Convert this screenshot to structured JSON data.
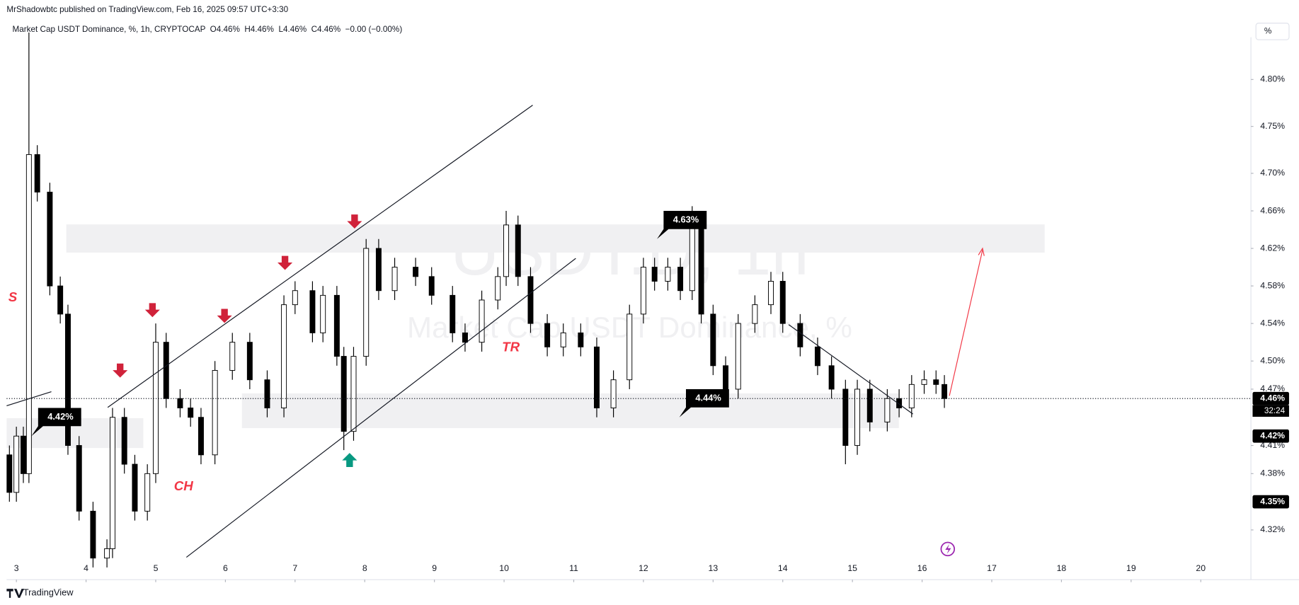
{
  "header": {
    "publisher": "MrShadowbtc published on TradingView.com, Feb 16, 2025 09:57 UTC+3:30",
    "symbol_line": "Market Cap USDT Dominance, %, 1h, CRYPTOCAP  O4.46%  H4.46%  L4.46%  C4.46%  −0.00 (−0.00%)"
  },
  "scale_button": "%",
  "footer": "TradingView",
  "chart_data": {
    "type": "candlestick",
    "watermark": [
      "USDT.D, 1h",
      "Market Cap USDT Dominance, %"
    ],
    "x": [
      2.9,
      3.0,
      3.1,
      3.18,
      3.3,
      3.48,
      3.63,
      3.74,
      3.9,
      4.1,
      4.3,
      4.38,
      4.55,
      4.7,
      4.88,
      5.0,
      5.15,
      5.35,
      5.5,
      5.65,
      5.85,
      6.1,
      6.35,
      6.6,
      6.84,
      7.0,
      7.25,
      7.4,
      7.6,
      7.7,
      7.84,
      8.02,
      8.2,
      8.43,
      8.73,
      8.96,
      9.26,
      9.44,
      9.68,
      9.91,
      10.03,
      10.2,
      10.38,
      10.62,
      10.85,
      11.1,
      11.33,
      11.57,
      11.8,
      12.0,
      12.16,
      12.35,
      12.53,
      12.7,
      12.83,
      13.0,
      13.18,
      13.36,
      13.6,
      13.83,
      14.0,
      14.25,
      14.5,
      14.7,
      14.9,
      15.07,
      15.25,
      15.5,
      15.67,
      15.85,
      16.03,
      16.2,
      16.32
    ],
    "open": [
      4.4,
      4.36,
      4.42,
      4.38,
      4.72,
      4.68,
      4.58,
      4.55,
      4.41,
      4.34,
      4.29,
      4.3,
      4.44,
      4.39,
      4.34,
      4.38,
      4.52,
      4.46,
      4.45,
      4.44,
      4.4,
      4.49,
      4.52,
      4.48,
      4.45,
      4.56,
      4.575,
      4.53,
      4.57,
      4.505,
      4.425,
      4.505,
      4.62,
      4.575,
      4.6,
      4.59,
      4.57,
      4.53,
      4.52,
      4.565,
      4.59,
      4.645,
      4.59,
      4.54,
      4.515,
      4.53,
      4.515,
      4.45,
      4.48,
      4.55,
      4.6,
      4.585,
      4.6,
      4.575,
      4.645,
      4.55,
      4.495,
      4.47,
      4.54,
      4.56,
      4.585,
      4.54,
      4.515,
      4.495,
      4.47,
      4.41,
      4.47,
      4.435,
      4.46,
      4.45,
      4.475,
      4.48,
      4.475
    ],
    "high": [
      4.41,
      4.43,
      4.43,
      4.85,
      4.73,
      4.69,
      4.59,
      4.56,
      4.42,
      4.35,
      4.31,
      4.45,
      4.45,
      4.4,
      4.39,
      4.54,
      4.53,
      4.47,
      4.46,
      4.45,
      4.5,
      4.53,
      4.53,
      4.49,
      4.57,
      4.585,
      4.585,
      4.58,
      4.58,
      4.515,
      4.515,
      4.63,
      4.63,
      4.61,
      4.61,
      4.6,
      4.58,
      4.54,
      4.575,
      4.6,
      4.66,
      4.655,
      4.6,
      4.55,
      4.54,
      4.54,
      4.525,
      4.49,
      4.56,
      4.61,
      4.61,
      4.61,
      4.61,
      4.665,
      4.655,
      4.56,
      4.505,
      4.55,
      4.57,
      4.595,
      4.595,
      4.55,
      4.525,
      4.505,
      4.48,
      4.48,
      4.48,
      4.47,
      4.47,
      4.485,
      4.49,
      4.49,
      4.485
    ],
    "low": [
      4.35,
      4.35,
      4.37,
      4.37,
      4.67,
      4.57,
      4.54,
      4.4,
      4.33,
      4.28,
      4.28,
      4.29,
      4.38,
      4.33,
      4.33,
      4.37,
      4.45,
      4.44,
      4.43,
      4.39,
      4.39,
      4.48,
      4.47,
      4.44,
      4.44,
      4.55,
      4.52,
      4.52,
      4.495,
      4.405,
      4.415,
      4.495,
      4.565,
      4.565,
      4.58,
      4.56,
      4.52,
      4.51,
      4.51,
      4.555,
      4.58,
      4.58,
      4.53,
      4.505,
      4.505,
      4.505,
      4.44,
      4.44,
      4.47,
      4.54,
      4.575,
      4.575,
      4.565,
      4.565,
      4.54,
      4.485,
      4.46,
      4.46,
      4.53,
      4.55,
      4.53,
      4.505,
      4.485,
      4.46,
      4.39,
      4.4,
      4.425,
      4.425,
      4.44,
      4.44,
      4.465,
      4.465,
      4.45
    ],
    "close": [
      4.36,
      4.42,
      4.38,
      4.72,
      4.68,
      4.58,
      4.55,
      4.41,
      4.34,
      4.29,
      4.3,
      4.44,
      4.39,
      4.34,
      4.38,
      4.52,
      4.46,
      4.45,
      4.44,
      4.4,
      4.49,
      4.52,
      4.48,
      4.45,
      4.56,
      4.575,
      4.53,
      4.57,
      4.505,
      4.425,
      4.505,
      4.62,
      4.575,
      4.6,
      4.59,
      4.57,
      4.53,
      4.52,
      4.565,
      4.59,
      4.645,
      4.59,
      4.54,
      4.515,
      4.53,
      4.515,
      4.45,
      4.48,
      4.55,
      4.6,
      4.585,
      4.6,
      4.575,
      4.645,
      4.55,
      4.495,
      4.47,
      4.54,
      4.56,
      4.585,
      4.54,
      4.515,
      4.495,
      4.47,
      4.41,
      4.47,
      4.435,
      4.46,
      4.45,
      4.475,
      4.48,
      4.475,
      4.46
    ],
    "up_color": "#ffffff",
    "down_color": "#000000",
    "border_color": "#000000",
    "xlim": [
      2.86,
      20.72
    ],
    "xticks": [
      3,
      4,
      5,
      6,
      7,
      8,
      9,
      10,
      11,
      12,
      13,
      14,
      15,
      16,
      17,
      18,
      19,
      20
    ],
    "ylim": [
      4.267,
      4.845
    ],
    "yticks": [
      {
        "value": 4.8,
        "label": "4.80%"
      },
      {
        "value": 4.75,
        "label": "4.75%"
      },
      {
        "value": 4.7,
        "label": "4.70%"
      },
      {
        "value": 4.66,
        "label": "4.66%"
      },
      {
        "value": 4.62,
        "label": "4.62%"
      },
      {
        "value": 4.58,
        "label": "4.58%"
      },
      {
        "value": 4.54,
        "label": "4.54%"
      },
      {
        "value": 4.5,
        "label": "4.50%"
      },
      {
        "value": 4.47,
        "label": "4.47%"
      },
      {
        "value": 4.41,
        "label": "4.41%"
      },
      {
        "value": 4.38,
        "label": "4.38%"
      },
      {
        "value": 4.32,
        "label": "4.32%"
      }
    ],
    "grid": false,
    "price_tags": [
      {
        "value": 4.46,
        "label": "4.46%",
        "countdown": "32:24"
      },
      {
        "value": 4.42,
        "label": "4.42%"
      },
      {
        "value": 4.35,
        "label": "4.35%"
      }
    ],
    "callouts": [
      {
        "value": 4.42,
        "label": "4.42%"
      },
      {
        "value": 4.63,
        "label": "4.63%"
      },
      {
        "value": 4.44,
        "label": "4.44%"
      }
    ],
    "annotations": [
      "S",
      "CH",
      "TR"
    ]
  }
}
